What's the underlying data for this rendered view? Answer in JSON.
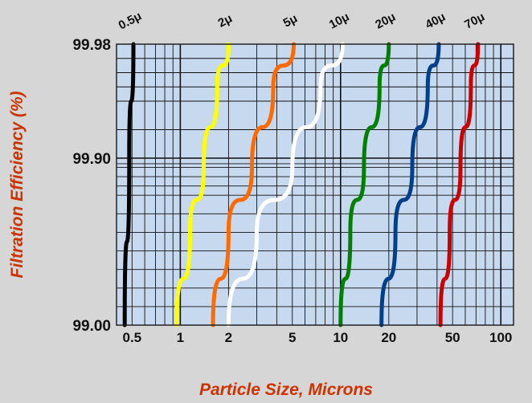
{
  "chart_data": {
    "type": "line",
    "xlabel": "Particle Size, Microns",
    "ylabel": "Filtration Efficiency (%)",
    "x_scale": "log",
    "xlim": [
      0.4,
      120
    ],
    "x_ticks": [
      0.5,
      1,
      2,
      5,
      10,
      20,
      50,
      100
    ],
    "x_tick_labels": [
      "0.5",
      "1",
      "2",
      "5",
      "10",
      "20",
      "50",
      "100"
    ],
    "y_ticks": [
      99.0,
      99.9,
      99.98
    ],
    "y_tick_labels": [
      "99.00",
      "99.90",
      "99.98"
    ],
    "grid": true,
    "plot_background": "#c7d9ef",
    "series": [
      {
        "name": "0.5μ",
        "color": "#000000",
        "x": [
          0.45,
          0.48,
          0.51
        ],
        "y": [
          99.0,
          99.9,
          99.98
        ]
      },
      {
        "name": "2μ",
        "color": "#ffff00",
        "x": [
          0.95,
          1.15,
          1.4,
          1.7,
          2.0
        ],
        "y": [
          99.0,
          99.5,
          99.85,
          99.95,
          99.98
        ]
      },
      {
        "name": "5μ",
        "color": "#ff6a00",
        "x": [
          1.6,
          2.0,
          2.8,
          3.8,
          5.1
        ],
        "y": [
          99.0,
          99.5,
          99.85,
          99.95,
          99.98
        ]
      },
      {
        "name": "10μ",
        "color": "#ffffff",
        "x": [
          2.0,
          3.0,
          5.0,
          7.5,
          10.3
        ],
        "y": [
          99.0,
          99.5,
          99.85,
          99.95,
          99.98
        ]
      },
      {
        "name": "20μ",
        "color": "#008000",
        "x": [
          10.0,
          11.5,
          14.0,
          17.5,
          20.0
        ],
        "y": [
          99.0,
          99.5,
          99.85,
          99.95,
          99.98
        ]
      },
      {
        "name": "40μ",
        "color": "#003f8a",
        "x": [
          18.0,
          22.0,
          28.0,
          35.0,
          41.0
        ],
        "y": [
          99.0,
          99.5,
          99.85,
          99.95,
          99.98
        ]
      },
      {
        "name": "70μ",
        "color": "#cc0000",
        "x": [
          42.0,
          48.0,
          56.0,
          65.0,
          72.0
        ],
        "y": [
          99.0,
          99.5,
          99.85,
          99.95,
          99.98
        ]
      }
    ]
  }
}
